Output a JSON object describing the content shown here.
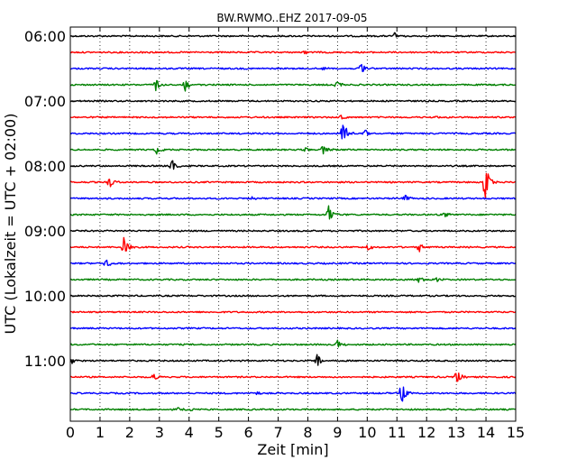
{
  "chart_data": {
    "type": "line",
    "title": "BW.RWMO..EHZ 2017-09-05",
    "xlabel": "Zeit  [min]",
    "ylabel": "UTC (Lokalzeit = UTC + 02:00)",
    "xlim": [
      0,
      15
    ],
    "x_ticks": [
      "0",
      "1",
      "2",
      "3",
      "4",
      "5",
      "6",
      "7",
      "8",
      "9",
      "10",
      "11",
      "12",
      "13",
      "14",
      "15"
    ],
    "y_tick_labels": [
      "06:00",
      "07:00",
      "08:00",
      "09:00",
      "10:00",
      "11:00"
    ],
    "grid": "vertical dotted",
    "line_colors": [
      "#000000",
      "#ff0000",
      "#0000ff",
      "#008000"
    ],
    "traces": [
      {
        "start": "06:00",
        "color": "#000000",
        "events": [
          {
            "t": 10.9,
            "a": 4
          }
        ]
      },
      {
        "start": "06:15",
        "color": "#ff0000",
        "events": [
          {
            "t": 2.4,
            "a": 2
          },
          {
            "t": 7.9,
            "a": 2
          }
        ]
      },
      {
        "start": "06:30",
        "color": "#0000ff",
        "events": [
          {
            "t": 9.8,
            "a": 8
          },
          {
            "t": 8.5,
            "a": 2
          }
        ]
      },
      {
        "start": "06:45",
        "color": "#008000",
        "events": [
          {
            "t": 2.85,
            "a": 8
          },
          {
            "t": 3.85,
            "a": 9
          },
          {
            "t": 8.95,
            "a": 5
          }
        ]
      },
      {
        "start": "07:00",
        "color": "#000000",
        "events": []
      },
      {
        "start": "07:15",
        "color": "#ff0000",
        "events": [
          {
            "t": 9.1,
            "a": 3
          },
          {
            "t": 12.3,
            "a": 2
          }
        ]
      },
      {
        "start": "07:30",
        "color": "#0000ff",
        "events": [
          {
            "t": 9.15,
            "a": 22
          },
          {
            "t": 9.9,
            "a": 6
          }
        ]
      },
      {
        "start": "07:45",
        "color": "#008000",
        "events": [
          {
            "t": 2.9,
            "a": 5
          },
          {
            "t": 8.5,
            "a": 7
          },
          {
            "t": 7.9,
            "a": 3
          }
        ]
      },
      {
        "start": "08:00",
        "color": "#000000",
        "events": [
          {
            "t": 3.4,
            "a": 9
          }
        ]
      },
      {
        "start": "08:15",
        "color": "#ff0000",
        "events": [
          {
            "t": 1.3,
            "a": 7
          },
          {
            "t": 13.95,
            "a": 26
          }
        ]
      },
      {
        "start": "08:30",
        "color": "#0000ff",
        "events": [
          {
            "t": 11.25,
            "a": 5
          },
          {
            "t": 6.1,
            "a": 2
          }
        ]
      },
      {
        "start": "08:45",
        "color": "#008000",
        "events": [
          {
            "t": 8.7,
            "a": 12
          },
          {
            "t": 12.6,
            "a": 3
          }
        ]
      },
      {
        "start": "09:00",
        "color": "#000000",
        "events": []
      },
      {
        "start": "09:15",
        "color": "#ff0000",
        "events": [
          {
            "t": 1.8,
            "a": 12
          },
          {
            "t": 10.0,
            "a": 5
          },
          {
            "t": 11.75,
            "a": 5
          }
        ]
      },
      {
        "start": "09:30",
        "color": "#0000ff",
        "events": [
          {
            "t": 1.2,
            "a": 5
          }
        ]
      },
      {
        "start": "09:45",
        "color": "#008000",
        "events": [
          {
            "t": 11.7,
            "a": 5
          },
          {
            "t": 12.3,
            "a": 4
          }
        ]
      },
      {
        "start": "10:00",
        "color": "#000000",
        "events": []
      },
      {
        "start": "10:15",
        "color": "#ff0000",
        "events": []
      },
      {
        "start": "10:30",
        "color": "#0000ff",
        "events": []
      },
      {
        "start": "10:45",
        "color": "#008000",
        "events": [
          {
            "t": 9.0,
            "a": 7
          }
        ]
      },
      {
        "start": "11:00",
        "color": "#000000",
        "events": [
          {
            "t": 8.3,
            "a": 8
          },
          {
            "t": 0.05,
            "a": 3
          }
        ]
      },
      {
        "start": "11:15",
        "color": "#ff0000",
        "events": [
          {
            "t": 2.8,
            "a": 4
          },
          {
            "t": 13.0,
            "a": 10
          }
        ]
      },
      {
        "start": "11:30",
        "color": "#0000ff",
        "events": [
          {
            "t": 11.15,
            "a": 14
          },
          {
            "t": 6.3,
            "a": 2
          }
        ]
      },
      {
        "start": "11:45",
        "color": "#008000",
        "events": [
          {
            "t": 3.6,
            "a": 3
          },
          {
            "t": 4.1,
            "a": 2
          }
        ]
      }
    ]
  }
}
